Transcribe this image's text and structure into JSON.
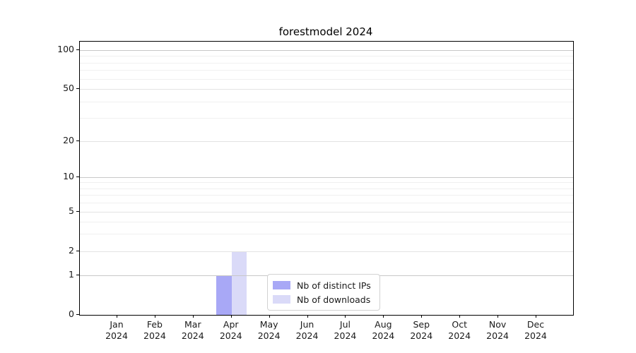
{
  "figure": {
    "background": "#ffffff"
  },
  "chart_data": {
    "type": "bar",
    "title": "forestmodel 2024",
    "categories": [
      "Jan 2024",
      "Feb 2024",
      "Mar 2024",
      "Apr 2024",
      "May 2024",
      "Jun 2024",
      "Jul 2024",
      "Aug 2024",
      "Sep 2024",
      "Oct 2024",
      "Nov 2024",
      "Dec 2024"
    ],
    "series": [
      {
        "name": "Nb of distinct IPs",
        "color": "#a8a8f6",
        "values": [
          0,
          0,
          0,
          1,
          0,
          0,
          0,
          0,
          0,
          0,
          0,
          0
        ]
      },
      {
        "name": "Nb of downloads",
        "color": "#dadaf8",
        "values": [
          0,
          0,
          0,
          2,
          0,
          0,
          0,
          0,
          0,
          0,
          0,
          0
        ]
      }
    ],
    "xlabel": "",
    "ylabel": "",
    "y_ticks": [
      0,
      1,
      2,
      5,
      10,
      20,
      50,
      100
    ],
    "y_scale": "log-like above 1, linear 0-1",
    "ylim": [
      0,
      115
    ],
    "grid": {
      "horizontal": true,
      "vertical": false,
      "minor_gridlines": true
    },
    "legend_position": "lower center"
  },
  "colors": {
    "major_grid": "#c8c8c8",
    "labeled_minor_grid": "#e3e3e3",
    "minor_grid": "#f0f0f0",
    "axis": "#000000",
    "text": "#1a1a1a",
    "legend_border": "#d2d2d2"
  }
}
